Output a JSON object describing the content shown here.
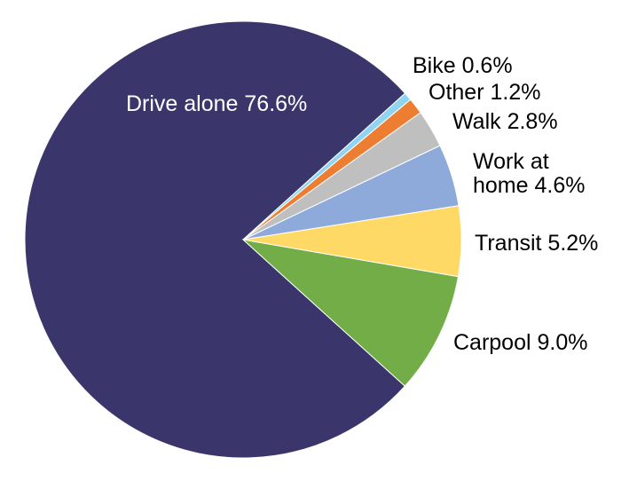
{
  "chart_data": {
    "type": "pie",
    "title": "",
    "slices": [
      {
        "name": "Drive alone",
        "value": 76.6,
        "label_lines": [
          "Drive alone 76.6%"
        ],
        "color": "#3a366c"
      },
      {
        "name": "Carpool",
        "value": 9.0,
        "label_lines": [
          "Carpool 9.0%"
        ],
        "color": "#72ad47"
      },
      {
        "name": "Transit",
        "value": 5.2,
        "label_lines": [
          "Transit 5.2%"
        ],
        "color": "#ffd966"
      },
      {
        "name": "Work at home",
        "value": 4.6,
        "label_lines": [
          "Work at",
          "home 4.6%"
        ],
        "color": "#8eaadb"
      },
      {
        "name": "Walk",
        "value": 2.8,
        "label_lines": [
          "Walk 2.8%"
        ],
        "color": "#bfbfbf"
      },
      {
        "name": "Other",
        "value": 1.2,
        "label_lines": [
          "Other 1.2%"
        ],
        "color": "#ed7d31"
      },
      {
        "name": "Bike",
        "value": 0.6,
        "label_lines": [
          "Bike 0.6%"
        ],
        "color": "#8fd4f0"
      }
    ]
  }
}
